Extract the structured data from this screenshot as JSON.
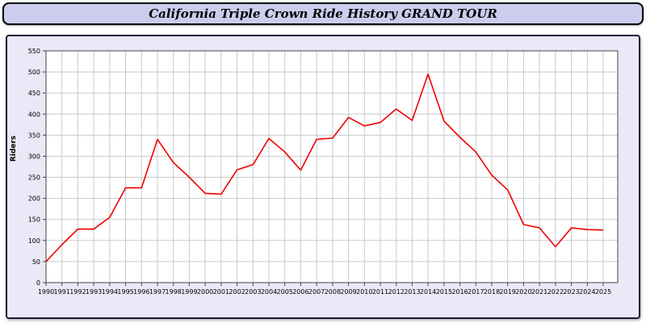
{
  "title": "California Triple Crown Ride History GRAND TOUR",
  "colors": {
    "titlebar_bg": "#ccccee",
    "panel_bg": "#e9e9f7",
    "plot_bg": "#ffffff",
    "grid": "#c9c9c9",
    "axis": "#444444",
    "line": "#ee0000"
  },
  "chart_data": {
    "type": "line",
    "title": "California Triple Crown Ride History GRAND TOUR",
    "xlabel": "",
    "ylabel": "Riders",
    "ylim": [
      0,
      550
    ],
    "ytick_step": 50,
    "grid": true,
    "legend": "none",
    "x": [
      1990,
      1991,
      1992,
      1993,
      1994,
      1995,
      1996,
      1997,
      1998,
      1999,
      2000,
      2001,
      2002,
      2003,
      2004,
      2005,
      2006,
      2007,
      2008,
      2009,
      2010,
      2011,
      2012,
      2013,
      2014,
      2015,
      2016,
      2017,
      2018,
      2019,
      2020,
      2021,
      2022,
      2023,
      2024,
      2025
    ],
    "values": [
      50,
      90,
      127,
      127,
      155,
      225,
      225,
      340,
      285,
      250,
      212,
      210,
      268,
      280,
      342,
      310,
      267,
      340,
      343,
      392,
      372,
      380,
      412,
      385,
      495,
      383,
      345,
      310,
      255,
      220,
      138,
      130,
      85,
      130,
      126,
      125
    ]
  }
}
